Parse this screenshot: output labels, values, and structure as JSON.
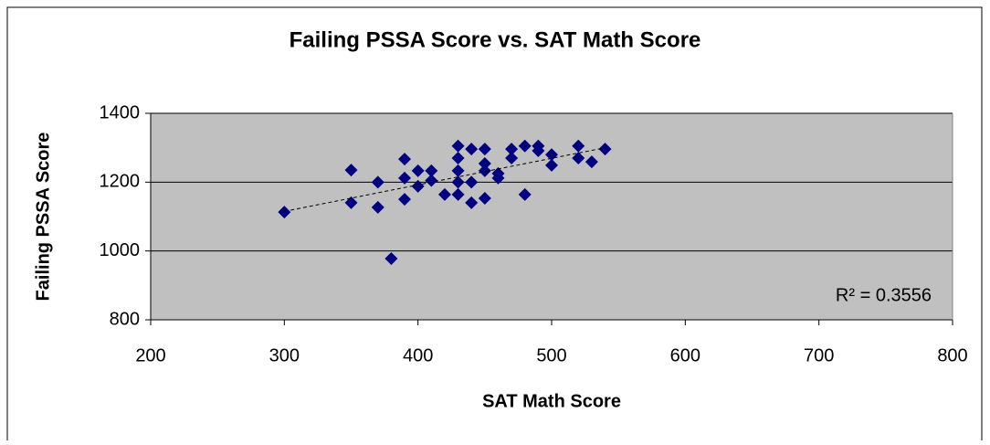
{
  "chart_data": {
    "type": "scatter",
    "title": "Failing PSSA Score vs. SAT Math Score",
    "x_label": "SAT Math Score",
    "y_label": "Failing PSSA Score",
    "annotation": "R² = 0.3556",
    "series": [
      {
        "name": "Failing PSSA Score",
        "color": "#000080",
        "x": [
          300,
          350,
          350,
          370,
          370,
          380,
          390,
          390,
          390,
          400,
          400,
          410,
          410,
          420,
          430,
          430,
          430,
          430,
          430,
          440,
          440,
          440,
          450,
          450,
          450,
          450,
          460,
          460,
          470,
          470,
          480,
          480,
          490,
          490,
          500,
          500,
          520,
          520,
          530,
          540
        ],
        "values": [
          1113,
          1235,
          1140,
          1200,
          1127,
          978,
          1267,
          1212,
          1150,
          1233,
          1188,
          1233,
          1205,
          1164,
          1305,
          1270,
          1233,
          1200,
          1164,
          1296,
          1200,
          1140,
          1296,
          1254,
          1233,
          1153,
          1225,
          1212,
          1296,
          1270,
          1305,
          1164,
          1305,
          1291,
          1280,
          1249,
          1305,
          1270,
          1259,
          1296
        ]
      }
    ],
    "trendline": {
      "x": [
        300,
        540
      ],
      "values": [
        1115,
        1300
      ]
    },
    "xlim": [
      200,
      800
    ],
    "xticks": [
      200,
      300,
      400,
      500,
      600,
      700,
      800
    ],
    "ylim": [
      800,
      1400
    ],
    "yticks": [
      800,
      1000,
      1200,
      1400
    ],
    "grid": true,
    "plot_background": "#c0c0c0"
  }
}
